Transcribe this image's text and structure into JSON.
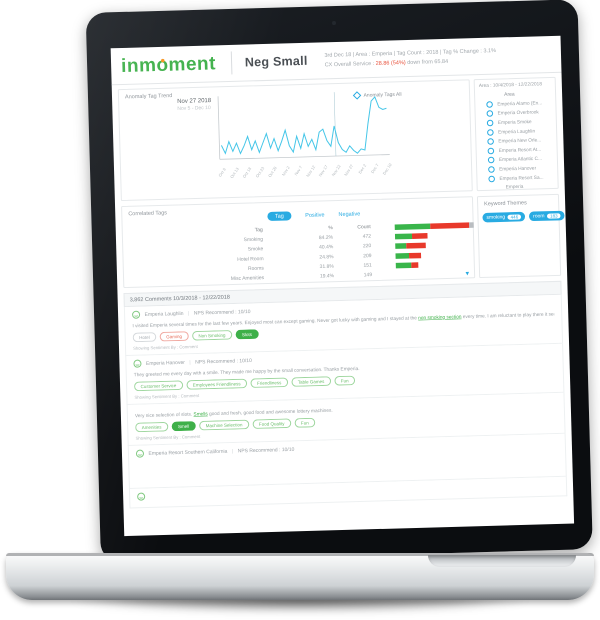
{
  "header": {
    "logo_pre": "inm",
    "logo_o": "o",
    "logo_post": "ment",
    "title": "Neg Small",
    "stats_line1": "3rd Dec 18   |   Area : Emperia   |   Tag Count : 2018   |   Tag % Change : 3.1%",
    "stats_line2_label": "CX Overall Service : ",
    "stats_line2_value": "28.86 (54%)",
    "stats_line2_rest": " down from 65.84"
  },
  "anomaly_panel": {
    "title": "Anomaly Tag Trend",
    "tooltip_date": "Nov 27 2018",
    "tooltip_range": "Nov 5 - Dec 10",
    "legend_label": "Anomaly Tags All"
  },
  "area_panel": {
    "header": "Area : 10/4/2018 - 12/22/2018",
    "column_header": "Area",
    "items": [
      "Emperia Alamo (En...",
      "Emperia Overbrook",
      "Emperia Smoke",
      "Emperia Laughlin",
      "Emperia New Orle...",
      "Emperia Resort At...",
      "Emperia Atlantic C...",
      "Emperia Hanover",
      "Emperia Resort Sa..."
    ],
    "footer": "Emperia"
  },
  "correlated_panel": {
    "title": "Correlated Tags",
    "tab": "Tag",
    "link_positive": "Positive",
    "link_negative": "Negative",
    "col_tag": "Tag",
    "col_pct": "%",
    "col_count": "Count",
    "rows": [
      {
        "tag": "Smoking",
        "pct": "84.2%",
        "count": "472"
      },
      {
        "tag": "Smoke",
        "pct": "40.4%",
        "count": "220"
      },
      {
        "tag": "Hotel Room",
        "pct": "24.8%",
        "count": "209"
      },
      {
        "tag": "Rooms",
        "pct": "31.8%",
        "count": "151"
      },
      {
        "tag": "Misc Amenities",
        "pct": "19.4%",
        "count": "149"
      }
    ]
  },
  "keyword_panel": {
    "title": "Keyword Themes",
    "pills": [
      {
        "label": "smoking",
        "count": "446"
      },
      {
        "label": "room",
        "count": "183"
      }
    ]
  },
  "comments": {
    "header": "3,862 Comments 10/3/2018 - 12/22/2018",
    "sentiment_label": "Showing Sentiment By : Comment",
    "items": [
      {
        "location": "Emperia Laughlin",
        "score": "NPS Recommend : 10/10",
        "body": [
          {
            "text": "I visited Emperia several times for the last few years. Enjoyed most can except gaming. Never got lucky with gaming and I stayed at the "
          },
          {
            "text": "non smoking section",
            "link": true
          },
          {
            "text": " every time. I am reluctant to play there it seems the machines are tight."
          }
        ],
        "tags": [
          {
            "label": "Hotel",
            "style": "gray-outline"
          },
          {
            "label": "Gaming",
            "style": "red-outline"
          },
          {
            "label": "Non Smoking",
            "style": "green-outline"
          },
          {
            "label": "Slots",
            "style": "green-solid"
          }
        ],
        "sentiment": true
      },
      {
        "location": "Emperia Hanover",
        "score": "NPS Recommend : 10/10",
        "body": [
          {
            "text": "They greeted me every day with a smile. They made me happy by the small conversation. Thanks Emperia."
          }
        ],
        "tags": [
          {
            "label": "Customer Service",
            "style": "green-outline"
          },
          {
            "label": "Employees Friendliness",
            "style": "green-outline"
          },
          {
            "label": "Friendliness",
            "style": "green-outline"
          },
          {
            "label": "Table Games",
            "style": "green-outline"
          },
          {
            "label": "Fun",
            "style": "green-outline"
          }
        ],
        "sentiment": true
      },
      {
        "body": [
          {
            "text": "Very nice selection of slots. "
          },
          {
            "text": "Smells",
            "link": true
          },
          {
            "text": " good and fresh, good food and awesome lottery machines."
          }
        ],
        "tags": [
          {
            "label": "Amenities",
            "style": "green-outline"
          },
          {
            "label": "Smell",
            "style": "green-solid"
          },
          {
            "label": "Machine Selection",
            "style": "green-outline"
          },
          {
            "label": "Food Quality",
            "style": "green-outline"
          },
          {
            "label": "Fun",
            "style": "green-outline"
          }
        ],
        "sentiment": true
      },
      {
        "location": "Emperia Resort Southern California",
        "score": "NPS Recommend : 10/10",
        "spacer": 52
      },
      {
        "stub": true
      }
    ]
  },
  "chart_data": [
    {
      "type": "line",
      "title": "Anomaly Tag Trend",
      "series": [
        {
          "name": "Anomaly Tags All",
          "color": "#45c6e8",
          "values": [
            0.24,
            0.1,
            0.3,
            0.13,
            0.27,
            0.09,
            0.22,
            0.38,
            0.15,
            0.3,
            0.1,
            0.26,
            0.42,
            0.17,
            0.33,
            0.12,
            0.28,
            0.47,
            0.2,
            0.09,
            0.36,
            0.15,
            0.4,
            0.18,
            0.3,
            0.12,
            0.42,
            0.47,
            0.27,
            0.17,
            0.52,
            0.23,
            0.11,
            0.06,
            0.17,
            0.09,
            0.04,
            0.11,
            0.09,
            0.55,
            0.93,
            1.0,
            0.82,
            0.78,
            0.8
          ]
        }
      ],
      "x_labels": [
        "Oct 8",
        "Oct 13",
        "Oct 18",
        "Oct 23",
        "Oct 28",
        "Nov 2",
        "Nov 7",
        "Nov 12",
        "Nov 17",
        "Nov 22",
        "Nov 27",
        "Dec 2",
        "Dec 7",
        "Dec 10"
      ],
      "crosshair_frac": 0.7,
      "ylim": [
        0,
        1
      ],
      "grid": false,
      "legend_position": "top-right"
    },
    {
      "type": "bar",
      "orientation": "horizontal",
      "title": "Correlated Tags",
      "categories": [
        "Smoking",
        "Smoke",
        "Hotel Room",
        "Rooms",
        "Misc Amenities"
      ],
      "series": [
        {
          "name": "Positive",
          "color": "#39b54a",
          "values": [
            71,
            34,
            22,
            27,
            31
          ]
        },
        {
          "name": "Negative",
          "color": "#e8392b",
          "values": [
            78,
            31,
            39,
            24,
            14
          ]
        }
      ],
      "cap_widths": [
        9,
        0,
        0,
        0,
        0
      ],
      "counts": [
        472,
        220,
        209,
        151,
        149
      ],
      "percents": [
        84.2,
        40.4,
        24.8,
        31.8,
        19.4
      ]
    }
  ],
  "colors": {
    "brand_green": "#3eb049",
    "brand_orange": "#f7941e",
    "accent_blue": "#29abe2",
    "line_blue": "#45c6e8",
    "negative_red": "#e8503a",
    "bar_green": "#39b54a",
    "bar_red": "#e8392b"
  }
}
